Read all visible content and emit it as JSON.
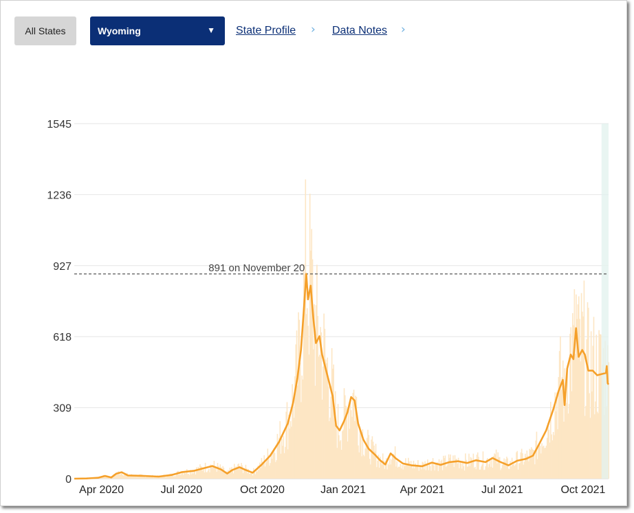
{
  "controls": {
    "all_states_label": "All States",
    "state_select_value": "Wyoming",
    "dropdown_arrow": "▼",
    "state_profile_label": "State Profile",
    "data_notes_label": "Data Notes",
    "chevron_icon": "›"
  },
  "colors": {
    "select_bg": "#0b2f76",
    "line": "#f5a02a",
    "bars": "#fde6c4",
    "shade": "#e4f2ef"
  },
  "chart_data": {
    "type": "line",
    "ylim": [
      0,
      1545
    ],
    "yticks": [
      0,
      309,
      618,
      927,
      1236,
      1545
    ],
    "xticks": [
      {
        "label": "Apr 2020",
        "date": "2020-04-01"
      },
      {
        "label": "Jul 2020",
        "date": "2020-07-01"
      },
      {
        "label": "Oct 2020",
        "date": "2020-10-01"
      },
      {
        "label": "Jan 2021",
        "date": "2021-01-01"
      },
      {
        "label": "Apr 2021",
        "date": "2021-04-01"
      },
      {
        "label": "Jul 2021",
        "date": "2021-07-01"
      },
      {
        "label": "Oct 2021",
        "date": "2021-10-01"
      }
    ],
    "xlim": [
      "2020-03-01",
      "2021-10-30"
    ],
    "reference_line": {
      "value": 891,
      "label": "891 on November 20"
    },
    "series": [
      {
        "values_kind": "7-day average of daily new cases",
        "points": [
          [
            "2020-03-01",
            0
          ],
          [
            "2020-03-15",
            1
          ],
          [
            "2020-03-28",
            4
          ],
          [
            "2020-04-05",
            12
          ],
          [
            "2020-04-12",
            5
          ],
          [
            "2020-04-18",
            22
          ],
          [
            "2020-04-24",
            28
          ],
          [
            "2020-05-01",
            14
          ],
          [
            "2020-05-20",
            12
          ],
          [
            "2020-06-05",
            9
          ],
          [
            "2020-06-20",
            16
          ],
          [
            "2020-07-01",
            28
          ],
          [
            "2020-07-15",
            34
          ],
          [
            "2020-07-25",
            44
          ],
          [
            "2020-08-05",
            55
          ],
          [
            "2020-08-15",
            40
          ],
          [
            "2020-08-22",
            22
          ],
          [
            "2020-08-28",
            38
          ],
          [
            "2020-09-05",
            50
          ],
          [
            "2020-09-12",
            38
          ],
          [
            "2020-09-20",
            26
          ],
          [
            "2020-09-30",
            60
          ],
          [
            "2020-10-10",
            100
          ],
          [
            "2020-10-20",
            160
          ],
          [
            "2020-10-30",
            240
          ],
          [
            "2020-11-05",
            330
          ],
          [
            "2020-11-10",
            440
          ],
          [
            "2020-11-14",
            560
          ],
          [
            "2020-11-17",
            720
          ],
          [
            "2020-11-20",
            891
          ],
          [
            "2020-11-22",
            780
          ],
          [
            "2020-11-25",
            840
          ],
          [
            "2020-11-28",
            700
          ],
          [
            "2020-12-01",
            590
          ],
          [
            "2020-12-05",
            620
          ],
          [
            "2020-12-08",
            540
          ],
          [
            "2020-12-12",
            480
          ],
          [
            "2020-12-16",
            420
          ],
          [
            "2020-12-20",
            360
          ],
          [
            "2020-12-24",
            230
          ],
          [
            "2020-12-28",
            210
          ],
          [
            "2021-01-02",
            250
          ],
          [
            "2021-01-06",
            290
          ],
          [
            "2021-01-10",
            355
          ],
          [
            "2021-01-14",
            340
          ],
          [
            "2021-01-18",
            240
          ],
          [
            "2021-01-24",
            170
          ],
          [
            "2021-01-30",
            130
          ],
          [
            "2021-02-06",
            105
          ],
          [
            "2021-02-12",
            80
          ],
          [
            "2021-02-18",
            62
          ],
          [
            "2021-02-24",
            110
          ],
          [
            "2021-03-02",
            88
          ],
          [
            "2021-03-10",
            66
          ],
          [
            "2021-03-20",
            58
          ],
          [
            "2021-04-01",
            54
          ],
          [
            "2021-04-12",
            70
          ],
          [
            "2021-04-22",
            60
          ],
          [
            "2021-05-02",
            72
          ],
          [
            "2021-05-12",
            76
          ],
          [
            "2021-05-22",
            68
          ],
          [
            "2021-06-01",
            80
          ],
          [
            "2021-06-12",
            72
          ],
          [
            "2021-06-20",
            90
          ],
          [
            "2021-06-28",
            74
          ],
          [
            "2021-07-08",
            58
          ],
          [
            "2021-07-18",
            78
          ],
          [
            "2021-07-28",
            86
          ],
          [
            "2021-08-05",
            100
          ],
          [
            "2021-08-12",
            150
          ],
          [
            "2021-08-20",
            210
          ],
          [
            "2021-08-28",
            300
          ],
          [
            "2021-09-03",
            380
          ],
          [
            "2021-09-08",
            430
          ],
          [
            "2021-09-10",
            320
          ],
          [
            "2021-09-13",
            480
          ],
          [
            "2021-09-17",
            540
          ],
          [
            "2021-09-20",
            520
          ],
          [
            "2021-09-23",
            655
          ],
          [
            "2021-09-26",
            530
          ],
          [
            "2021-09-30",
            560
          ],
          [
            "2021-10-03",
            540
          ],
          [
            "2021-10-07",
            470
          ],
          [
            "2021-10-12",
            470
          ],
          [
            "2021-10-17",
            450
          ],
          [
            "2021-10-22",
            455
          ],
          [
            "2021-10-27",
            460
          ],
          [
            "2021-10-28",
            490
          ],
          [
            "2021-10-29",
            415
          ],
          [
            "2021-10-30",
            410
          ]
        ]
      }
    ]
  }
}
